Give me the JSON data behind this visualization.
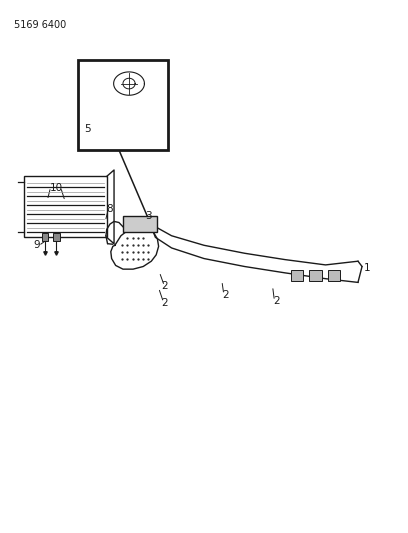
{
  "title": "5169 6400",
  "bg_color": "#ffffff",
  "line_color": "#1a1a1a",
  "text_color": "#1a1a1a",
  "fig_width": 4.08,
  "fig_height": 5.33,
  "dpi": 100
}
